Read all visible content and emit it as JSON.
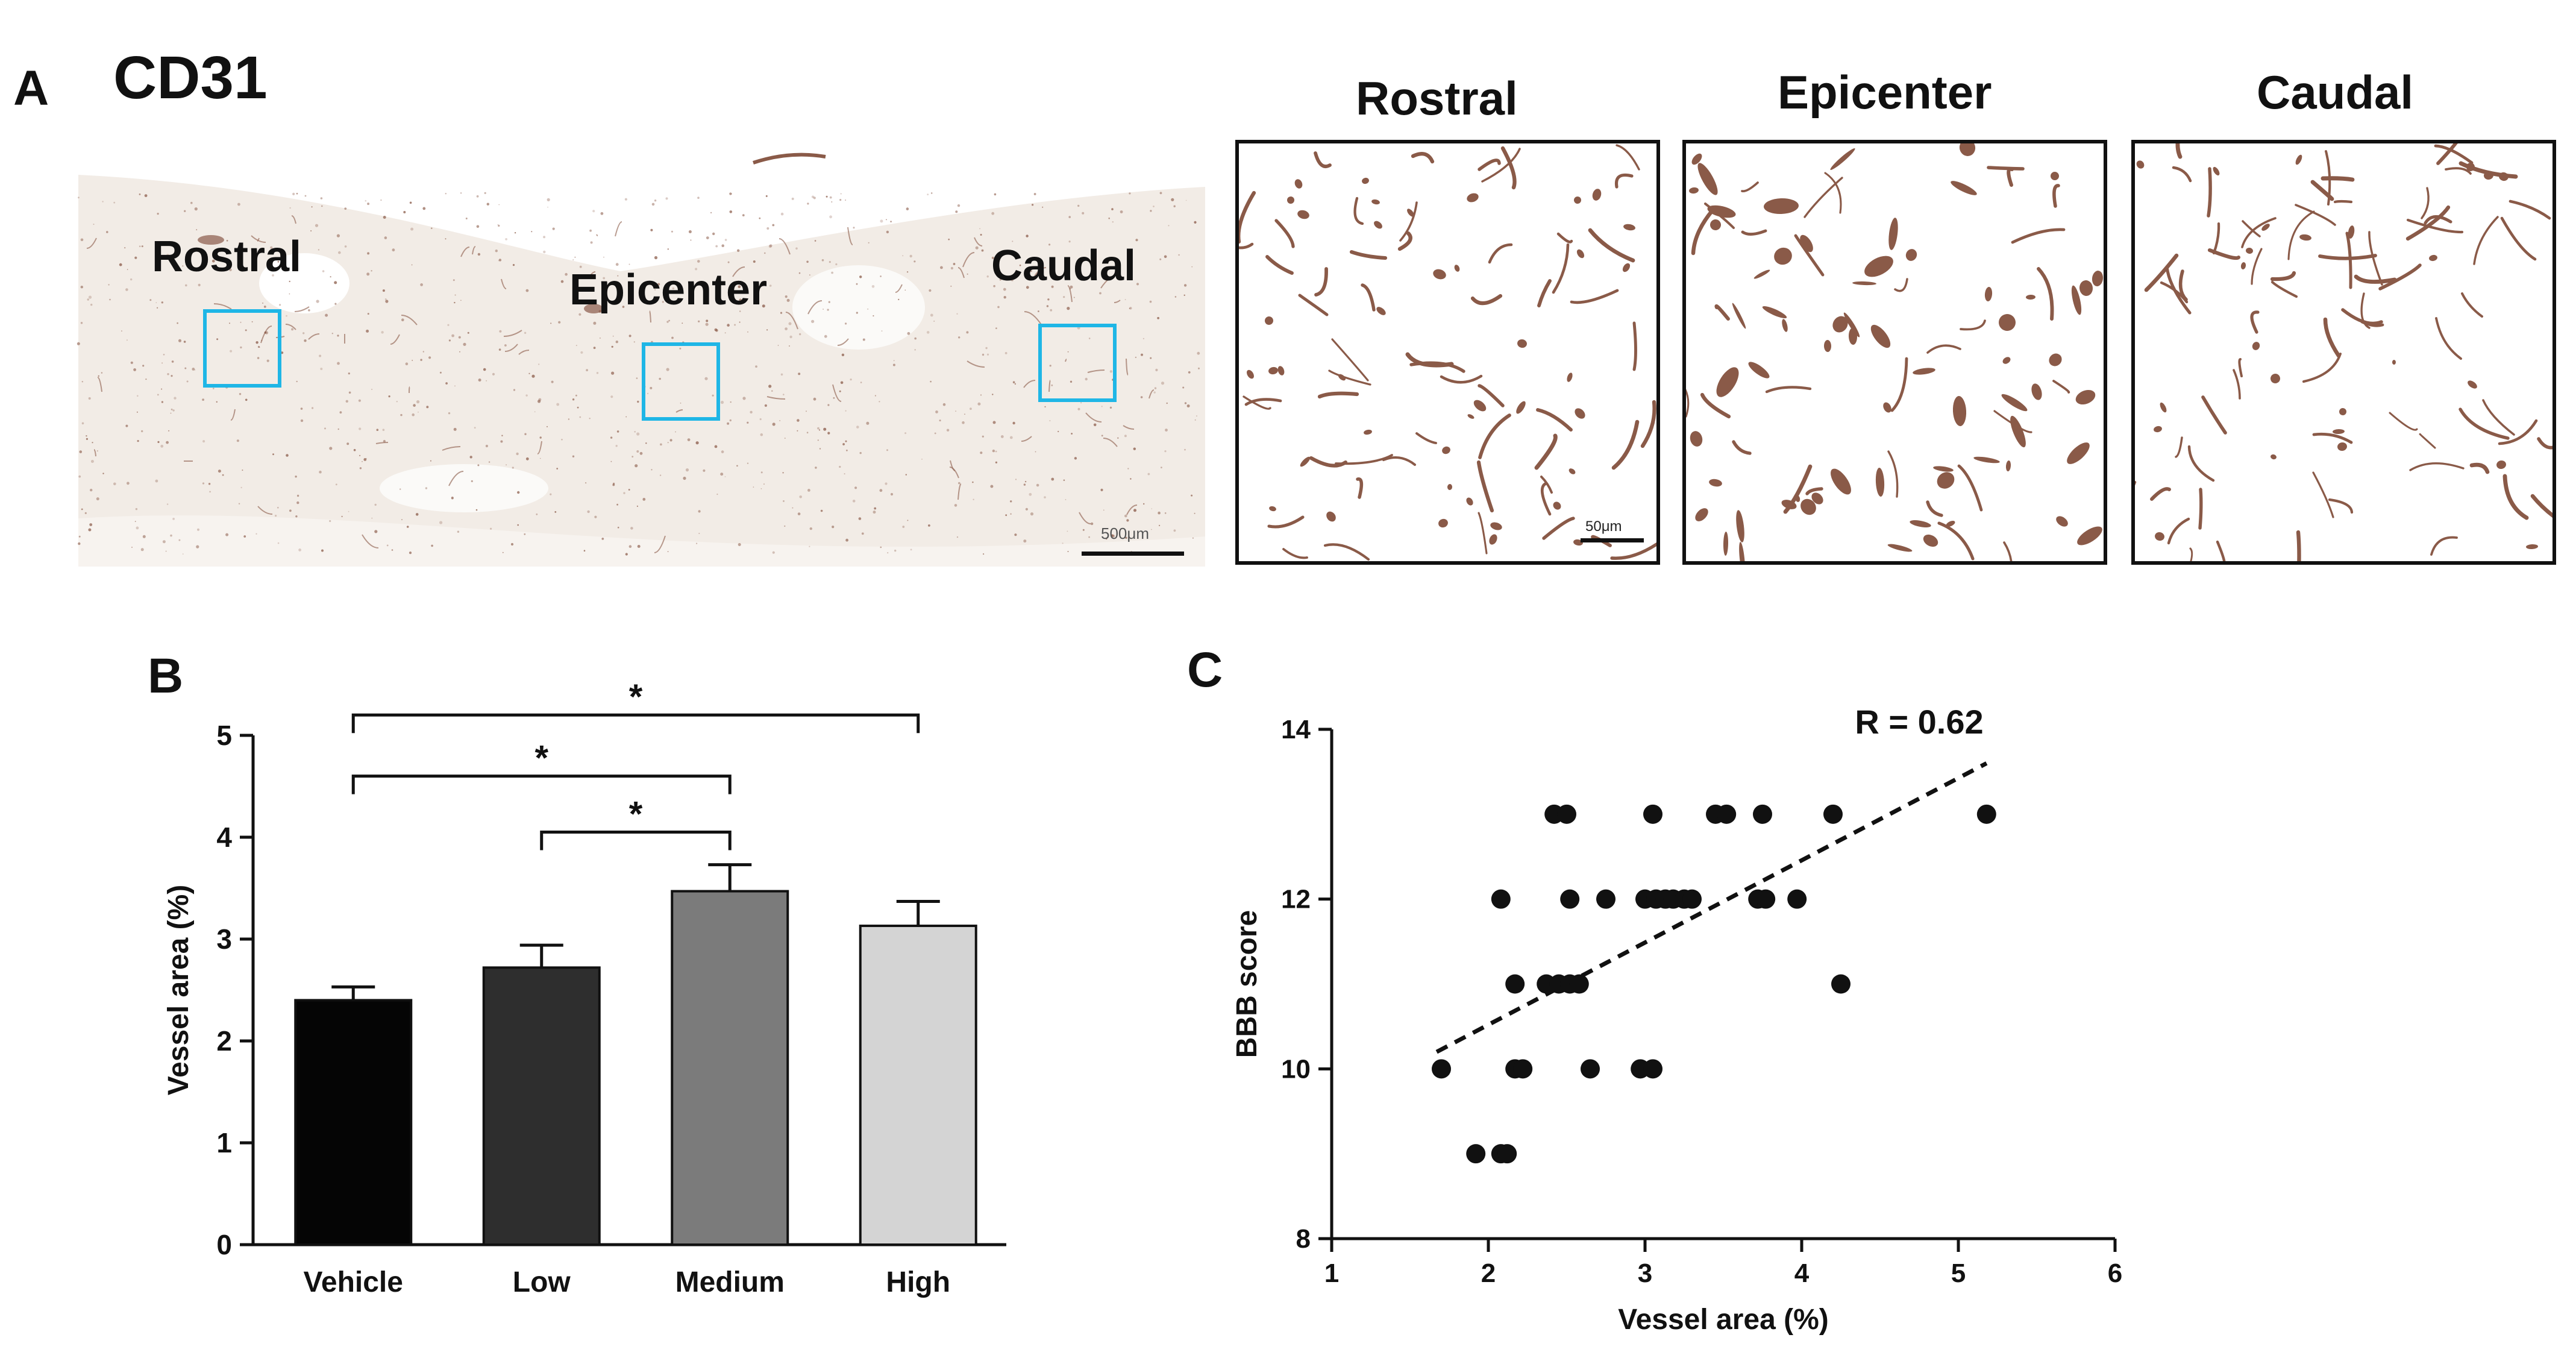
{
  "panel_a": {
    "letter": "A",
    "stain": "CD31",
    "overview_labels": {
      "rostral": "Rostral",
      "epicenter": "Epicenter",
      "caudal": "Caudal"
    },
    "overview_scale_text": "500μm",
    "region_titles": [
      "Rostral",
      "Epicenter",
      "Caudal"
    ],
    "zoom_scale_text": "50μm",
    "roi_color": "#1fb6e6",
    "stain_color": "#8a5a48"
  },
  "panel_b": {
    "letter": "B",
    "significance_marks": [
      "*",
      "*",
      "*"
    ]
  },
  "panel_c": {
    "letter": "C",
    "r_label": "R = 0.62"
  },
  "chart_data": [
    {
      "type": "bar",
      "categories": [
        "Vehicle",
        "Low",
        "Medium",
        "High"
      ],
      "values": [
        2.4,
        2.72,
        3.47,
        3.13
      ],
      "errors": [
        0.13,
        0.22,
        0.26,
        0.24
      ],
      "bar_colors": [
        "#050505",
        "#2e2e2e",
        "#7b7b7b",
        "#d4d4d4"
      ],
      "ylabel": "Vessel area (%)",
      "xlabel": "",
      "ylim": [
        0,
        5
      ],
      "yticks": [
        "0",
        "1",
        "2",
        "3",
        "4",
        "5"
      ],
      "comparisons": [
        {
          "from": "Vehicle",
          "to": "High",
          "label": "*"
        },
        {
          "from": "Vehicle",
          "to": "Medium",
          "label": "*"
        },
        {
          "from": "Low",
          "to": "Medium",
          "label": "*"
        }
      ]
    },
    {
      "type": "scatter",
      "xlabel": "Vessel area (%)",
      "ylabel": "BBB score",
      "xlim": [
        1,
        6
      ],
      "ylim": [
        8,
        14
      ],
      "xticks": [
        "1",
        "2",
        "3",
        "4",
        "5",
        "6"
      ],
      "yticks": [
        "8",
        "10",
        "12",
        "14"
      ],
      "annotation": "R = 0.62",
      "trendline": {
        "x": [
          1.67,
          5.18
        ],
        "y": [
          10.2,
          13.6
        ],
        "style": "dashed"
      },
      "points": [
        [
          1.7,
          10
        ],
        [
          1.92,
          9
        ],
        [
          2.08,
          9
        ],
        [
          2.12,
          9
        ],
        [
          2.08,
          12
        ],
        [
          2.17,
          11
        ],
        [
          2.17,
          10
        ],
        [
          2.22,
          10
        ],
        [
          2.42,
          13
        ],
        [
          2.5,
          13
        ],
        [
          2.37,
          11
        ],
        [
          2.45,
          11
        ],
        [
          2.52,
          11
        ],
        [
          2.58,
          11
        ],
        [
          2.52,
          12
        ],
        [
          2.65,
          10
        ],
        [
          2.75,
          12
        ],
        [
          2.97,
          10
        ],
        [
          3.05,
          10
        ],
        [
          3.05,
          13
        ],
        [
          3.0,
          12
        ],
        [
          3.07,
          12
        ],
        [
          3.13,
          12
        ],
        [
          3.18,
          12
        ],
        [
          3.25,
          12
        ],
        [
          3.3,
          12
        ],
        [
          3.45,
          13
        ],
        [
          3.52,
          13
        ],
        [
          3.72,
          12
        ],
        [
          3.77,
          12
        ],
        [
          3.75,
          13
        ],
        [
          3.97,
          12
        ],
        [
          4.2,
          13
        ],
        [
          4.25,
          11
        ],
        [
          5.18,
          13
        ]
      ]
    }
  ]
}
